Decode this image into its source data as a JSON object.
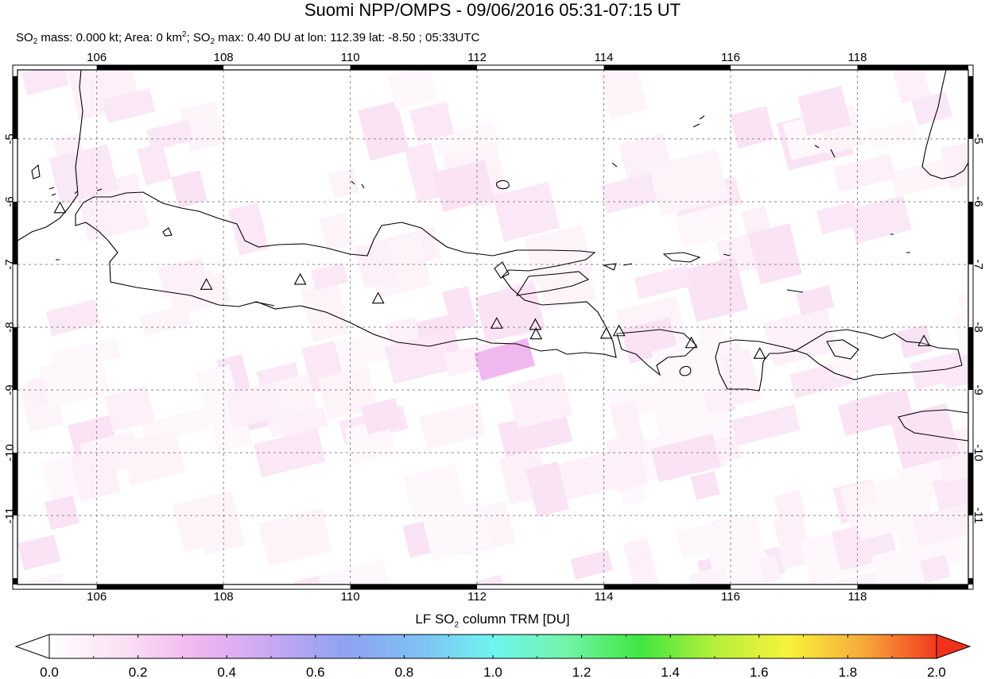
{
  "title": "Suomi NPP/OMPS - 09/06/2016 05:31-07:15 UT",
  "subtitle": {
    "mass_label": "SO",
    "mass_sub": "2",
    "mass_text": " mass: 0.000 kt; Area: 0 km",
    "area_sup": "2",
    "max_sep": "; SO",
    "max_sub": "2",
    "max_text": " max: 0.40 DU at lon: 112.39 lat: -8.50 ; 05:33UTC"
  },
  "map": {
    "lon_range": [
      104.75,
      119.75
    ],
    "lat_range": [
      -12.1,
      -3.9
    ],
    "lon_ticks": [
      "106",
      "108",
      "110",
      "112",
      "114",
      "116",
      "118"
    ],
    "lat_ticks": [
      "-5",
      "-6",
      "-7",
      "-8",
      "-9",
      "-10",
      "-11"
    ],
    "grid": true,
    "colors": {
      "land_outline": "#000000",
      "grid": "#888888",
      "low_so2": "#fbe6f5",
      "peak_so2": "#f1b8f0"
    },
    "volcanoes": [
      {
        "lon": 105.42,
        "lat": -6.1
      },
      {
        "lon": 107.73,
        "lat": -7.32
      },
      {
        "lon": 109.21,
        "lat": -7.24
      },
      {
        "lon": 110.44,
        "lat": -7.54
      },
      {
        "lon": 112.31,
        "lat": -7.94
      },
      {
        "lon": 112.92,
        "lat": -7.96
      },
      {
        "lon": 112.93,
        "lat": -8.11
      },
      {
        "lon": 114.04,
        "lat": -8.1
      },
      {
        "lon": 114.24,
        "lat": -8.06
      },
      {
        "lon": 115.38,
        "lat": -8.25
      },
      {
        "lon": 116.46,
        "lat": -8.42
      },
      {
        "lon": 119.05,
        "lat": -8.22
      }
    ]
  },
  "colorbar": {
    "title_pre": "LF SO",
    "title_sub": "2",
    "title_post": " column TRM [DU]",
    "min": 0.0,
    "max": 2.0,
    "tick_labels": [
      "0.0",
      "0.2",
      "0.4",
      "0.6",
      "0.8",
      "1.0",
      "1.2",
      "1.4",
      "1.6",
      "1.8",
      "2.0"
    ],
    "colors": [
      "#ffffff",
      "#fbe0f3",
      "#f1b6f0",
      "#c8a8f3",
      "#8fa2f2",
      "#7fc0f5",
      "#6ff4f0",
      "#72f4a8",
      "#3fe640",
      "#b6ef3c",
      "#f7f33a",
      "#f8a93a",
      "#f23a1e"
    ],
    "left_arrow_color": "#ffffff",
    "right_arrow_color": "#f2311a"
  }
}
